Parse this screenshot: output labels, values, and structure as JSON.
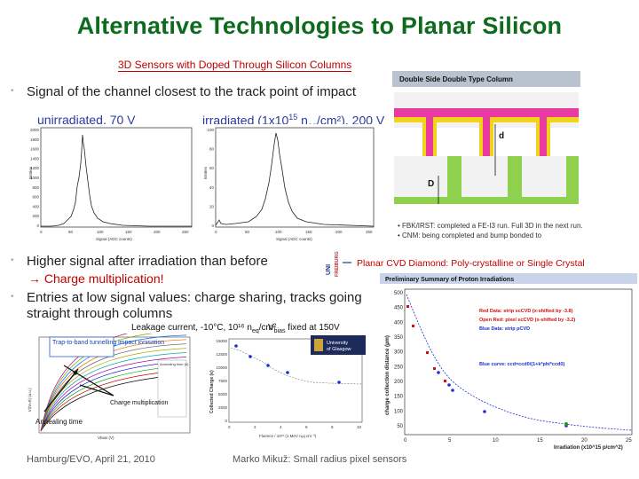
{
  "title": "Alternative Technologies to Planar Silicon",
  "subtitle": "3D Sensors with Doped Through Silicon Columns",
  "bullets": [
    "Signal of the channel closest to the track point of impact",
    "Higher signal after irradiation than before",
    "Entries at low signal values: charge sharing, tracks going straight through columns"
  ],
  "bullet2_sub": "→ Charge multiplication!",
  "labels": {
    "unirradiated": "unirradiated, 70 V",
    "irradiated_pre": "irradiated (1x10",
    "irradiated_exp": "15",
    "irradiated_mid": " n",
    "irradiated_sub": "eq",
    "irradiated_post": "/cm²), 200 V",
    "leakage": "Leakage current, -10°C, 10¹⁶ n",
    "leakage_sub": "eq",
    "leakage_post": "/cm²",
    "vbias_pre": "V",
    "vbias_sub": "bias",
    "vbias_post": " fixed at 150V",
    "diamond": "Planar CVD Diamond: Poly-crystalline or Single Crystal",
    "trap": "Trap-to-band tunnelling impact ionisation",
    "charge_mult": "Charge multiplication",
    "annealing": "Annealing time"
  },
  "fig3d": {
    "header": "Double Side Double Type Column",
    "d": "d",
    "D": "D",
    "notes": [
      "• FBK/IRST: completed a FE-I3 run. Full 3D in the next run.",
      "• CNM: being completed and bump bonded to"
    ]
  },
  "hist": {
    "xlabel": "Signal (ADC counts)",
    "ylabel": "Entries",
    "unirr_yticks": [
      "2000",
      "1800",
      "1600",
      "1400",
      "1200",
      "1000",
      "800",
      "600",
      "400",
      "200",
      "0"
    ],
    "unirr_xticks": [
      "0",
      "50",
      "100",
      "150",
      "200",
      "250"
    ],
    "irr_yticks": [
      "100",
      "80",
      "60",
      "40",
      "20",
      "0"
    ],
    "irr_xticks": [
      "0",
      "50",
      "100",
      "150",
      "200",
      "250"
    ]
  },
  "charge_plot": {
    "ylabel": "Collected Charge (e)",
    "xlabel": "Fluence / 10¹⁵ (1 MeV nₑq cm⁻²)",
    "yticks": [
      "15000",
      "12500",
      "10000",
      "7500",
      "5000",
      "2500",
      "0"
    ],
    "xticks": [
      "0",
      "2",
      "4",
      "6",
      "8",
      "10"
    ]
  },
  "leak_plot": {
    "ylabel": "I/I(V=0) (a.u.)",
    "xlabel": "Vbias (V)",
    "legend_title": "Annealing time (h)"
  },
  "diamond_plot": {
    "header": "Preliminary Summary of Proton Irradiations",
    "ylabel": "charge collection distance (µm)",
    "xlabel": "Irradiation (x10^15 p/cm^2)",
    "yticks": [
      "500",
      "450",
      "400",
      "350",
      "300",
      "250",
      "200",
      "150",
      "100",
      "50"
    ],
    "xticks": [
      "0",
      "5",
      "10",
      "15",
      "20",
      "25"
    ],
    "legend": [
      {
        "text": "Red Data: strip scCVD (x-shifted by -3.8)",
        "color": "#d01010"
      },
      {
        "text": "Open Red: pixel scCVD (x-shifted by -3.2)",
        "color": "#d01010"
      },
      {
        "text": "Blue Data: strip pCVD",
        "color": "#1a2fd0"
      },
      {
        "text": "Blue curve: ccd=ccd0/(1+k*phi*ccd0)",
        "color": "#1a2fd0"
      }
    ]
  },
  "footer": {
    "left": "Hamburg/EVO, April 21, 2010",
    "right": "Marko Mikuž: Small radius pixel sensors"
  },
  "logos": {
    "freiburg": "UNI FREIBURG",
    "glasgow": "University of Glasgow"
  }
}
